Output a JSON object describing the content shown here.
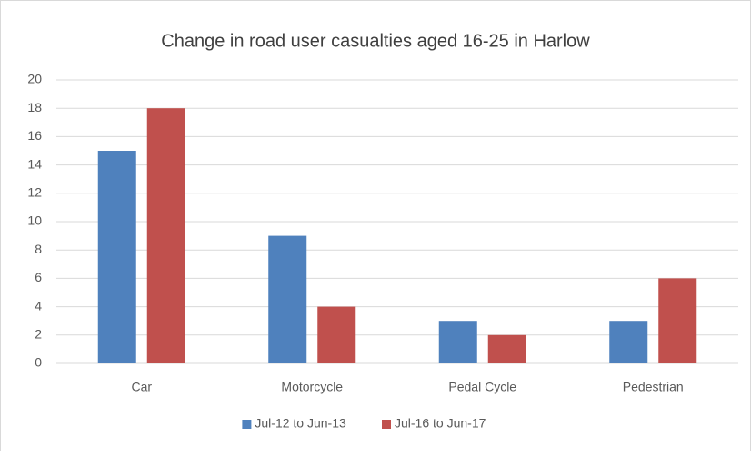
{
  "chart_data": {
    "type": "bar",
    "title": "Change in road user casualties aged 16-25 in Harlow",
    "categories": [
      "Car",
      "Motorcycle",
      "Pedal Cycle",
      "Pedestrian"
    ],
    "series": [
      {
        "name": "Jul-12 to Jun-13",
        "color": "#4f81bd",
        "values": [
          15,
          9,
          3,
          3
        ]
      },
      {
        "name": "Jul-16 to Jun-17",
        "color": "#c0504d",
        "values": [
          18,
          4,
          2,
          6
        ]
      }
    ],
    "ylim": [
      0,
      20
    ],
    "yticks": [
      0,
      2,
      4,
      6,
      8,
      10,
      12,
      14,
      16,
      18,
      20
    ],
    "grid": true,
    "legend": "bottom"
  }
}
